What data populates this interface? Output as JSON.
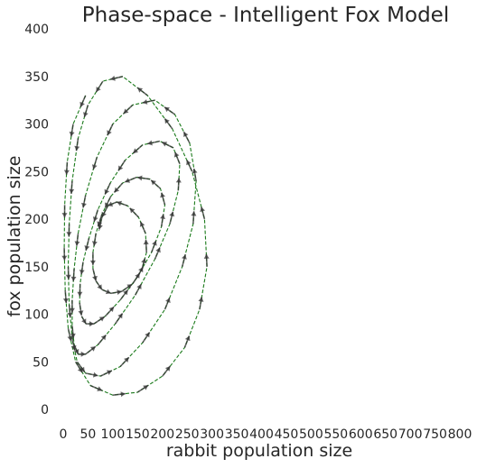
{
  "chart_data": {
    "type": "line",
    "title": "Phase-space - Intelligent Fox Model",
    "xlabel": "rabbit population size",
    "ylabel": "fox population size",
    "xlim": [
      0,
      800
    ],
    "ylim": [
      0,
      400
    ],
    "xticks": [
      "0",
      "50",
      "100",
      "150",
      "200",
      "250",
      "300",
      "350",
      "400",
      "450",
      "500",
      "550",
      "600",
      "650",
      "700",
      "750",
      "800"
    ],
    "yticks": [
      "0",
      "50",
      "100",
      "150",
      "200",
      "250",
      "300",
      "350",
      "400"
    ],
    "grid": false,
    "colors": {
      "trajectory": "#1a7a1a",
      "arrows": "#333333"
    },
    "series": [
      {
        "x": [
          45,
          20,
          8,
          3,
          2,
          4,
          10,
          25,
          55,
          100,
          150,
          200,
          245,
          275,
          290,
          285,
          260,
          220,
          170,
          120,
          80,
          50,
          30,
          18,
          12,
          10,
          12,
          18,
          28,
          45,
          75,
          115,
          160,
          205,
          240,
          262,
          268,
          255,
          225,
          185,
          140,
          100,
          68,
          45,
          30,
          22,
          18,
          18,
          22,
          30,
          45,
          70,
          105,
          145,
          185,
          215,
          232,
          235,
          222,
          195,
          160,
          125,
          95,
          70,
          52,
          40,
          34,
          33,
          37,
          46,
          62,
          85,
          115,
          148,
          178,
          198,
          205,
          196,
          175,
          148,
          120,
          96,
          78,
          66,
          60,
          60,
          66,
          78,
          96,
          118,
          140,
          158,
          168,
          166,
          152,
          130,
          108,
          90,
          78,
          72
        ],
        "y": [
          330,
          300,
          260,
          215,
          170,
          125,
          85,
          50,
          25,
          15,
          18,
          35,
          65,
          105,
          150,
          200,
          250,
          295,
          330,
          350,
          345,
          320,
          285,
          240,
          195,
          150,
          110,
          75,
          50,
          38,
          35,
          45,
          70,
          105,
          150,
          195,
          240,
          280,
          310,
          325,
          320,
          300,
          265,
          225,
          185,
          148,
          115,
          88,
          68,
          58,
          58,
          68,
          90,
          120,
          158,
          195,
          230,
          258,
          275,
          282,
          278,
          262,
          238,
          210,
          180,
          155,
          132,
          112,
          98,
          90,
          90,
          98,
          115,
          138,
          165,
          192,
          215,
          232,
          242,
          244,
          238,
          224,
          205,
          185,
          165,
          148,
          135,
          126,
          122,
          124,
          132,
          146,
          165,
          185,
          202,
          214,
          218,
          214,
          202,
          188
        ]
      }
    ]
  }
}
